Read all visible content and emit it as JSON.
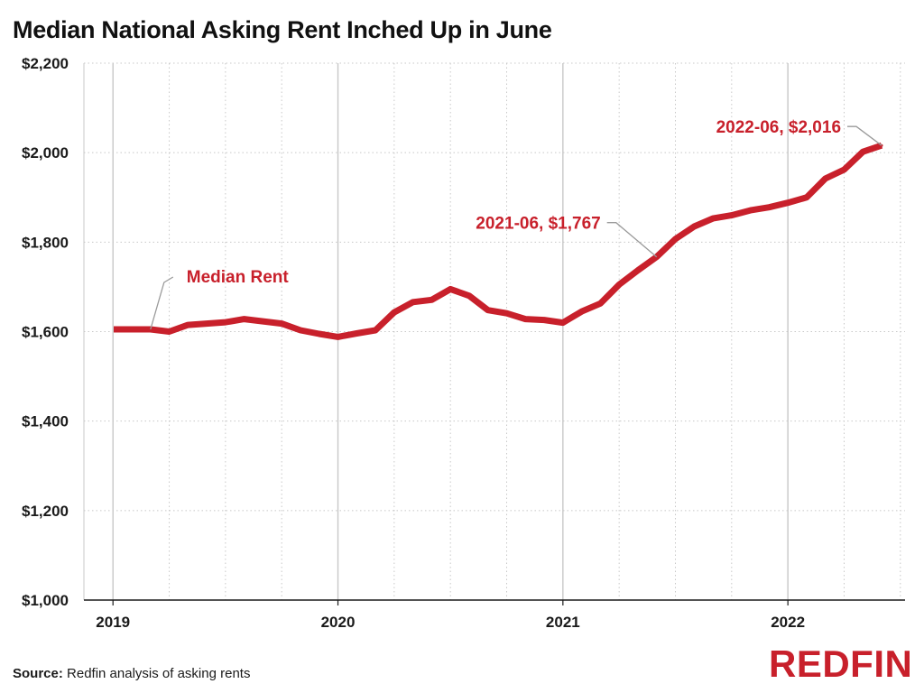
{
  "title": "Median National Asking Rent Inched Up in June",
  "source_label": "Source:",
  "source_text": "Redfin analysis of asking rents",
  "logo_text": "REDFIN",
  "colors": {
    "line": "#c8202b",
    "grid": "#c8c8c8",
    "axis": "#1a1a1a",
    "logo": "#c8202b"
  },
  "chart_data": {
    "type": "line",
    "title": "Median National Asking Rent Inched Up in June",
    "xlabel": "",
    "ylabel": "",
    "ylim": [
      1000,
      2200
    ],
    "y_ticks": [
      1000,
      1200,
      1400,
      1600,
      1800,
      2000,
      2200
    ],
    "y_tick_labels": [
      "$1,000",
      "$1,200",
      "$1,400",
      "$1,600",
      "$1,800",
      "$2,000",
      "$2,200"
    ],
    "x_ticks": [
      "2019",
      "2020",
      "2021",
      "2022"
    ],
    "grid": true,
    "legend": "none",
    "series": [
      {
        "name": "Median Rent",
        "x": [
          "2019-02",
          "2019-03",
          "2019-04",
          "2019-05",
          "2019-06",
          "2019-07",
          "2019-08",
          "2019-09",
          "2019-10",
          "2019-11",
          "2019-12",
          "2020-01",
          "2020-02",
          "2020-03",
          "2020-04",
          "2020-05",
          "2020-06",
          "2020-07",
          "2020-08",
          "2020-09",
          "2020-10",
          "2020-11",
          "2020-12",
          "2021-01",
          "2021-02",
          "2021-03",
          "2021-04",
          "2021-05",
          "2021-06",
          "2021-07",
          "2021-08",
          "2021-09",
          "2021-10",
          "2021-11",
          "2021-12",
          "2022-01",
          "2022-02",
          "2022-03",
          "2022-04",
          "2022-05",
          "2022-06"
        ],
        "values": [
          1605,
          1605,
          1600,
          1615,
          1618,
          1621,
          1628,
          1623,
          1618,
          1603,
          1595,
          1588,
          1596,
          1603,
          1643,
          1666,
          1671,
          1695,
          1680,
          1648,
          1641,
          1628,
          1626,
          1620,
          1645,
          1663,
          1705,
          1737,
          1767,
          1807,
          1835,
          1853,
          1860,
          1871,
          1878,
          1888,
          1900,
          1942,
          1962,
          2002,
          2016
        ]
      }
    ],
    "annotations": [
      {
        "text": "Median Rent",
        "x": "2019-03",
        "y": 1605
      },
      {
        "text": "2021-06, $1,767",
        "x": "2021-06",
        "y": 1767
      },
      {
        "text": "2022-06, $2,016",
        "x": "2022-06",
        "y": 2016
      }
    ]
  }
}
